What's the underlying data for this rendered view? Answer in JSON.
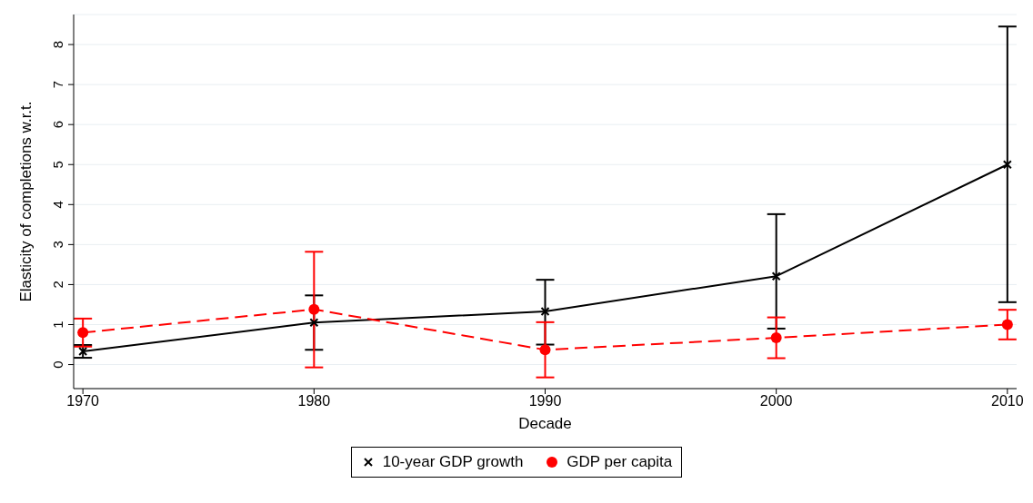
{
  "chart_data": {
    "type": "line",
    "xlabel": "Decade",
    "ylabel": "Elasticity of completions w.r.t.",
    "x": [
      1970,
      1980,
      1990,
      2000,
      2010
    ],
    "series": [
      {
        "name": "10-year GDP growth",
        "color": "#000000",
        "marker": "cross",
        "line_style": "solid",
        "values": [
          0.33,
          1.05,
          1.33,
          2.21,
          5.0
        ],
        "errors": [
          [
            0.17,
            0.49
          ],
          [
            0.37,
            1.73
          ],
          [
            0.5,
            2.12
          ],
          [
            0.9,
            3.76
          ],
          [
            1.56,
            8.45
          ]
        ]
      },
      {
        "name": "GDP per capita",
        "color": "#ff0000",
        "marker": "circle",
        "line_style": "dashed",
        "values": [
          0.8,
          1.38,
          0.37,
          0.67,
          1.0
        ],
        "errors": [
          [
            0.45,
            1.15
          ],
          [
            -0.07,
            2.82
          ],
          [
            -0.32,
            1.06
          ],
          [
            0.16,
            1.18
          ],
          [
            0.63,
            1.37
          ]
        ]
      }
    ],
    "xlim": [
      1969.6,
      2010.4
    ],
    "xticks": [
      1970,
      1980,
      1990,
      2000,
      2010
    ],
    "ylim": [
      -0.6,
      8.75
    ],
    "yticks": [
      0,
      1,
      2,
      3,
      4,
      5,
      6,
      7,
      8
    ],
    "grid": "y",
    "legend": "bottom"
  }
}
